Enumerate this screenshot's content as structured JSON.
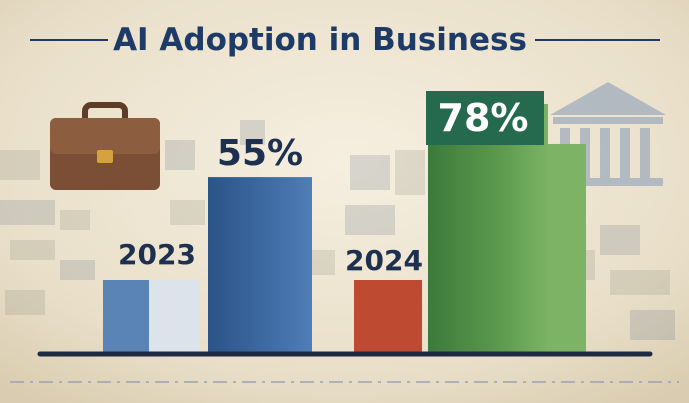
{
  "chart_data": {
    "type": "bar",
    "title": "AI Adoption in Business",
    "xlabel": "",
    "ylabel": "",
    "ylim": [
      0,
      100
    ],
    "categories": [
      "2023",
      "2024"
    ],
    "values": [
      55,
      78
    ],
    "value_labels": [
      "55%",
      "78%"
    ],
    "grid": false,
    "legend": "none"
  },
  "icons": {
    "left": "briefcase-icon",
    "right": "bank-building-icon"
  },
  "colors": {
    "title": "#1d3b66",
    "blue_dark": "#2f5a8f",
    "blue_light": "#5a84b6",
    "blue_pale": "#dde3ea",
    "red": "#bf4a32",
    "green_dark": "#3f7d3f",
    "green_light": "#7cb364",
    "badge": "#25694f",
    "baseline": "#1c2a44"
  }
}
